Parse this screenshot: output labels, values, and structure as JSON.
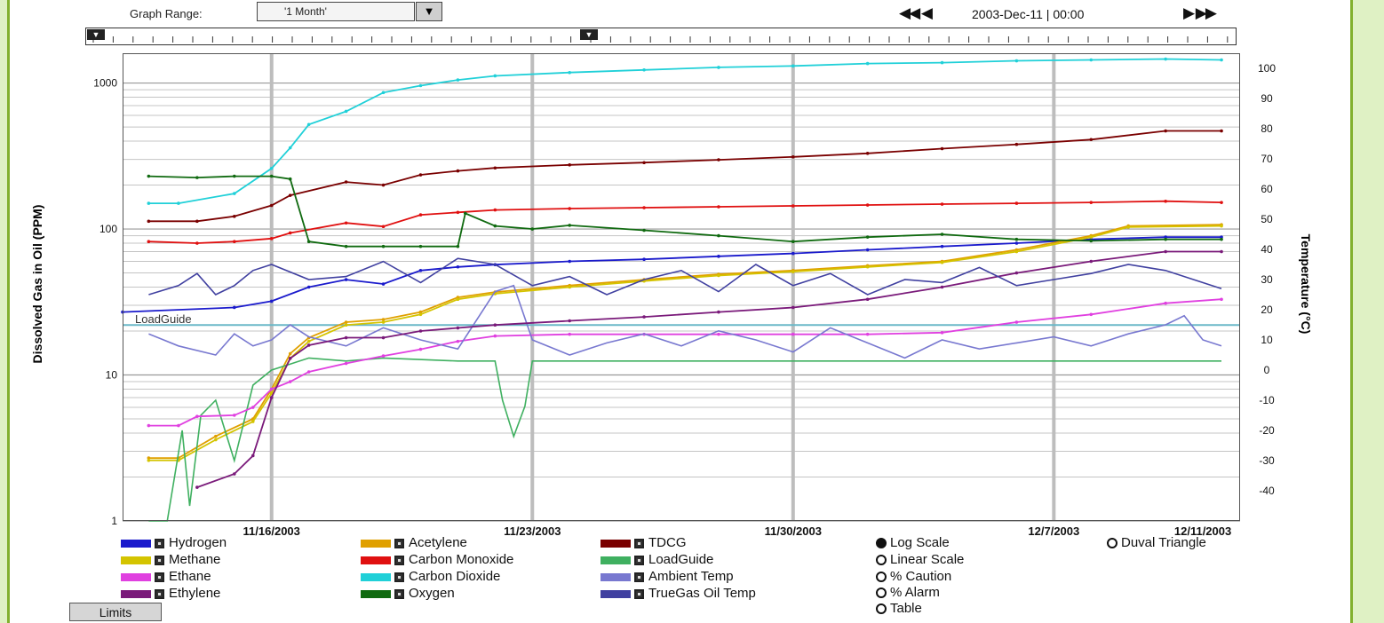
{
  "toolbar": {
    "graph_range_label": "Graph Range:",
    "graph_range_value": "'1 Month'",
    "nav_back": "◀◀ ◀",
    "nav_date": "2003-Dec-11 | 00:00",
    "nav_forward": "▶ ▶▶"
  },
  "buttons": {
    "limits": "Limits"
  },
  "scale_options": [
    {
      "label": "Log Scale",
      "selected": true
    },
    {
      "label": "Linear Scale",
      "selected": false
    },
    {
      "label": "% Caution",
      "selected": false
    },
    {
      "label": "% Alarm",
      "selected": false
    },
    {
      "label": "Table",
      "selected": false
    }
  ],
  "duval_option": {
    "label": "Duval Triangle",
    "selected": false
  },
  "chart_data": {
    "type": "line",
    "ylabel": "Dissolved Gas in Oil (PPM)",
    "y2label": "Temperature (°C)",
    "y_scale": "log",
    "ylim": [
      1,
      1600
    ],
    "y2lim": [
      -50,
      105
    ],
    "xlim": [
      "2003-11-12",
      "2003-12-12"
    ],
    "y_ticks": [
      "1",
      "10",
      "100",
      "1000"
    ],
    "y2_ticks": [
      "100",
      "90",
      "80",
      "70",
      "60",
      "50",
      "40",
      "30",
      "20",
      "10",
      "0",
      "-10",
      "-20",
      "-30",
      "-40"
    ],
    "x_ticks": [
      "11/16/2003",
      "11/23/2003",
      "11/30/2003",
      "12/7/2003",
      "12/11/2003"
    ],
    "x_tick_days": [
      4,
      11,
      18,
      25,
      29
    ],
    "annotation": {
      "text": "LoadGuide",
      "value": 22
    },
    "grid": "on",
    "series": [
      {
        "name": "Hydrogen",
        "color": "#1a1acc",
        "axis": "left",
        "x": [
          0,
          3,
          4,
          5,
          6,
          7,
          8,
          9,
          10,
          12,
          14,
          16,
          18,
          20,
          22,
          24,
          26,
          28,
          29.5
        ],
        "y": [
          27,
          29,
          32,
          40,
          45,
          42,
          52,
          55,
          57,
          60,
          62,
          65,
          68,
          72,
          76,
          80,
          85,
          88,
          88
        ]
      },
      {
        "name": "Acetylene",
        "color": "#e0a000",
        "axis": "left",
        "x": [
          0.7,
          1.5,
          2.5,
          3.5,
          4,
          4.5,
          5,
          6,
          7,
          8,
          9,
          10,
          12,
          14,
          16,
          18,
          20,
          22,
          24,
          26,
          27,
          29.5
        ],
        "y": [
          2.7,
          2.7,
          3.8,
          5,
          8,
          14,
          18,
          23,
          24,
          27,
          34,
          37,
          41,
          45,
          49,
          52,
          56,
          60,
          72,
          90,
          105,
          107
        ]
      },
      {
        "name": "TDCG",
        "color": "#7a0000",
        "axis": "left",
        "x": [
          0.7,
          2,
          3,
          4,
          4.5,
          6,
          7,
          8,
          9,
          10,
          12,
          14,
          16,
          18,
          20,
          22,
          24,
          26,
          28,
          29.5
        ],
        "y": [
          113,
          113,
          122,
          145,
          170,
          210,
          200,
          235,
          250,
          262,
          275,
          285,
          298,
          312,
          330,
          355,
          380,
          410,
          470,
          470
        ]
      },
      {
        "name": "Methane",
        "color": "#d4c400",
        "axis": "left",
        "x": [
          0.7,
          1.5,
          2.5,
          3.5,
          4,
          4.5,
          5,
          6,
          7,
          8,
          9,
          10,
          12,
          14,
          16,
          18,
          20,
          22,
          24,
          26,
          27,
          29.5
        ],
        "y": [
          2.6,
          2.6,
          3.6,
          4.8,
          7.5,
          13,
          17,
          22,
          23,
          26,
          33,
          36,
          40,
          44,
          48,
          51,
          55,
          59,
          70,
          88,
          103,
          105
        ]
      },
      {
        "name": "Carbon Monoxide",
        "color": "#e01010",
        "axis": "left",
        "x": [
          0.7,
          2,
          3,
          4,
          4.5,
          6,
          7,
          8,
          9,
          10,
          12,
          14,
          16,
          18,
          20,
          22,
          24,
          26,
          28,
          29.5
        ],
        "y": [
          82,
          80,
          82,
          86,
          94,
          110,
          104,
          125,
          130,
          135,
          138,
          140,
          142,
          144,
          146,
          148,
          150,
          152,
          155,
          152
        ]
      },
      {
        "name": "LoadGuide",
        "color": "#3fb060",
        "axis": "right",
        "x": [
          0.7,
          1.2,
          1.6,
          1.8,
          2.1,
          2.5,
          3,
          3.5,
          4,
          4.5,
          5,
          6,
          7,
          9,
          10,
          10.2,
          10.5,
          10.8,
          11,
          12,
          14,
          16,
          18,
          20,
          22,
          24,
          26,
          28,
          29.5
        ],
        "y": [
          -50,
          -50,
          -20,
          -45,
          -15,
          -10,
          -30,
          -5,
          0,
          2,
          4,
          3,
          4,
          3,
          3,
          -10,
          -22,
          -12,
          3,
          3,
          3,
          3,
          3,
          3,
          3,
          3,
          3,
          3,
          3
        ]
      },
      {
        "name": "Ethane",
        "color": "#e040e0",
        "axis": "left",
        "x": [
          0.7,
          1.5,
          2,
          3,
          3.5,
          4,
          4.5,
          5,
          6,
          7,
          8,
          9,
          10,
          12,
          14,
          16,
          18,
          20,
          22,
          24,
          26,
          28,
          29.5
        ],
        "y": [
          4.5,
          4.5,
          5.2,
          5.3,
          6,
          8,
          9,
          10.5,
          12,
          13.5,
          15,
          17,
          18.5,
          19,
          19,
          19,
          19,
          19,
          19.5,
          23,
          26,
          31,
          33
        ]
      },
      {
        "name": "Carbon Dioxide",
        "color": "#20d0d8",
        "axis": "left",
        "x": [
          0.7,
          1.5,
          3,
          4,
          4.5,
          5,
          6,
          7,
          8,
          9,
          10,
          12,
          14,
          16,
          18,
          20,
          22,
          24,
          26,
          28,
          29.5
        ],
        "y": [
          150,
          150,
          175,
          260,
          360,
          520,
          640,
          860,
          960,
          1050,
          1120,
          1180,
          1230,
          1280,
          1310,
          1360,
          1380,
          1420,
          1440,
          1460,
          1440
        ]
      },
      {
        "name": "Ambient Temp",
        "color": "#7878d0",
        "axis": "right",
        "x": [
          0.7,
          1.5,
          2.5,
          3,
          3.5,
          4,
          4.5,
          5,
          6,
          7,
          8,
          9,
          10,
          10.5,
          11,
          12,
          13,
          14,
          15,
          16,
          17,
          18,
          19,
          20,
          21,
          22,
          23,
          24,
          25,
          26,
          27,
          28,
          28.5,
          29,
          29.5
        ],
        "y": [
          12,
          8,
          5,
          12,
          8,
          10,
          15,
          11,
          8,
          14,
          10,
          7,
          26,
          28,
          10,
          5,
          9,
          12,
          8,
          13,
          10,
          6,
          14,
          9,
          4,
          10,
          7,
          9,
          11,
          8,
          12,
          15,
          18,
          10,
          8
        ]
      },
      {
        "name": "Ethylene",
        "color": "#7a1a7a",
        "axis": "left",
        "x": [
          2,
          3,
          3.5,
          4,
          4.5,
          5,
          6,
          7,
          8,
          9,
          10,
          12,
          14,
          16,
          18,
          20,
          22,
          24,
          26,
          28,
          29.5
        ],
        "y": [
          1.7,
          2.1,
          2.8,
          7,
          13,
          16,
          18,
          18,
          20,
          21,
          22,
          23.5,
          25,
          27,
          29,
          33,
          40,
          50,
          60,
          70,
          70
        ]
      },
      {
        "name": "Oxygen",
        "color": "#106a10",
        "axis": "left",
        "x": [
          0.7,
          2,
          3,
          4,
          4.5,
          5,
          6,
          7,
          8,
          9,
          9.2,
          10,
          11,
          12,
          14,
          16,
          18,
          20,
          22,
          24,
          26,
          28,
          29.5
        ],
        "y": [
          230,
          225,
          230,
          230,
          220,
          82,
          76,
          76,
          76,
          76,
          128,
          105,
          100,
          106,
          98,
          90,
          82,
          88,
          92,
          85,
          83,
          85,
          85
        ]
      },
      {
        "name": "TrueGas Oil Temp",
        "color": "#4040a0",
        "axis": "right",
        "x": [
          0.7,
          1.5,
          2,
          2.5,
          3,
          3.5,
          4,
          5,
          6,
          7,
          8,
          9,
          10,
          11,
          12,
          13,
          14,
          15,
          16,
          17,
          18,
          19,
          20,
          21,
          22,
          23,
          24,
          25,
          26,
          27,
          28,
          29.5
        ],
        "y": [
          25,
          28,
          32,
          25,
          28,
          33,
          35,
          30,
          31,
          36,
          29,
          37,
          35,
          28,
          31,
          25,
          30,
          33,
          26,
          35,
          28,
          32,
          25,
          30,
          29,
          34,
          28,
          30,
          32,
          35,
          33,
          27
        ]
      }
    ]
  }
}
